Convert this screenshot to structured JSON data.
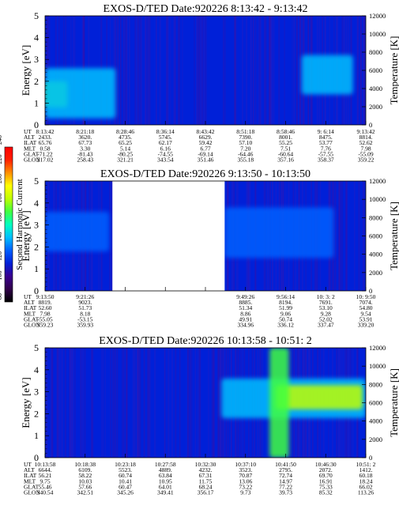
{
  "colorbar": {
    "label": "Second Harmonic Current",
    "ticks": [
      "240",
      "220",
      "200",
      "180",
      "160",
      "140",
      "120",
      "100",
      "80"
    ],
    "stops": [
      "#000000",
      "#30004a",
      "#3a0090",
      "#0020d8",
      "#0060ff",
      "#00c0ff",
      "#00ffc0",
      "#40ff40",
      "#c0ff00",
      "#ffff00",
      "#ff9000",
      "#ff2000",
      "#ff0000"
    ]
  },
  "panels": [
    {
      "title": "EXOS-D/TED   Date:920226  8:13:42 - 9:13:42",
      "ylabel": "Energy [eV]",
      "y2label": "Temperature [K]",
      "yticks": [
        "0",
        "1",
        "2",
        "3",
        "4",
        "5"
      ],
      "y2ticks": [
        "0",
        "2000",
        "4000",
        "6000",
        "8000",
        "10000",
        "12000"
      ],
      "eph_labels": [
        "UT",
        "ALT",
        "ILAT",
        "MLT",
        "GLAT",
        "GLON"
      ],
      "eph": [
        [
          "8:13:42",
          "2433.",
          "65.76",
          "0.58",
          "-71.22",
          "217.02"
        ],
        [
          "8:21:18",
          "3620.",
          "67.73",
          "3.30",
          "-81.43",
          "258.43"
        ],
        [
          "8:28:46",
          "4735.",
          "65.25",
          "5.14",
          "-80.25",
          "321.21"
        ],
        [
          "8:36:14",
          "5745.",
          "62.17",
          "6.16",
          "-74.55",
          "343.54"
        ],
        [
          "8:43:42",
          "6629.",
          "59.42",
          "6.77",
          "-69.14",
          "351.46"
        ],
        [
          "8:51:18",
          "7390.",
          "57.10",
          "7.20",
          "-64.46",
          "355.18"
        ],
        [
          "8:58:46",
          "8001.",
          "55.25",
          "7.51",
          "-60.64",
          "357.16"
        ],
        [
          "9: 6:14",
          "8475.",
          "53.77",
          "7.76",
          "-57.55",
          "358.37"
        ],
        [
          "9:13:42",
          "8814.",
          "52.62",
          "7.98",
          "-55.09",
          "359.22"
        ]
      ]
    },
    {
      "title": "EXOS-D/TED   Date:920226  9:13:50 - 10:13:50",
      "ylabel": "Energy [eV]",
      "y2label": "Temperature [K]",
      "yticks": [
        "0",
        "1",
        "2",
        "3",
        "4",
        "5"
      ],
      "y2ticks": [
        "0",
        "2000",
        "4000",
        "6000",
        "8000",
        "10000",
        "12000"
      ],
      "eph_labels": [
        "UT",
        "ALT",
        "ILAT",
        "MLT",
        "GLAT",
        "GLON"
      ],
      "eph": [
        [
          "9:13:50",
          "8819.",
          "52.60",
          "7.98",
          "-55.05",
          "359.23"
        ],
        [
          "9:21:26",
          "9023.",
          "51.73",
          "8.18",
          "-53.15",
          "359.93"
        ],
        [
          "",
          "",
          "",
          "",
          "",
          ""
        ],
        [
          "",
          "",
          "",
          "",
          "",
          ""
        ],
        [
          "",
          "",
          "",
          "",
          "",
          ""
        ],
        [
          "9:49:26",
          "8885.",
          "51.34",
          "8.86",
          "49.91",
          "334.96"
        ],
        [
          "9:56:14",
          "8194.",
          "51.99",
          "9.06",
          "50.74",
          "336.12"
        ],
        [
          "10: 3: 2",
          "7691.",
          "53.10",
          "9.28",
          "52.02",
          "337.47"
        ],
        [
          "10: 9:50",
          "7074.",
          "54.80",
          "9.54",
          "53.91",
          "339.20"
        ]
      ]
    },
    {
      "title": "EXOS-D/TED   Date:920226  10:13:58 - 10:51: 2",
      "ylabel": "Energy [eV]",
      "y2label": "Temperature [K]",
      "yticks": [
        "0",
        "1",
        "2",
        "3",
        "4",
        "5"
      ],
      "y2ticks": [
        "0",
        "2000",
        "4000",
        "6000",
        "8000",
        "10000",
        "12000"
      ],
      "eph_labels": [
        "UT",
        "ALT",
        "ILAT",
        "MLT",
        "GLAT",
        "GLON"
      ],
      "eph": [
        [
          "10:13:58",
          "6644.",
          "56.21",
          "9.75",
          "55.46",
          "340.54"
        ],
        [
          "10:18:38",
          "6109.",
          "58.22",
          "10.03",
          "57.66",
          "342.51"
        ],
        [
          "10:23:18",
          "5523.",
          "60.74",
          "10.41",
          "60.47",
          "345.26"
        ],
        [
          "10:27:58",
          "4889.",
          "63.84",
          "10.95",
          "64.01",
          "349.41"
        ],
        [
          "10:32:30",
          "4232.",
          "67.31",
          "11.75",
          "68.24",
          "356.17"
        ],
        [
          "10:37:10",
          "3523.",
          "70.87",
          "13.06",
          "73.22",
          "9.73"
        ],
        [
          "10:41:50",
          "2795.",
          "72.74",
          "14.97",
          "77.22",
          "39.73"
        ],
        [
          "10:46:30",
          "2072.",
          "69.70",
          "16.91",
          "75.33",
          "85.32"
        ],
        [
          "10:51: 2",
          "1412.",
          "60.18",
          "18.24",
          "66.02",
          "113.26"
        ]
      ]
    }
  ],
  "chart_data": [
    {
      "type": "heatmap",
      "title": "EXOS-D/TED   Date:920226  8:13:42 - 9:13:42",
      "xlabel": "",
      "ylabel": "Energy [eV]",
      "y2label": "Temperature [K]",
      "ylim": [
        0,
        5
      ],
      "y2lim": [
        0,
        12000
      ],
      "x_ticks": [
        "8:13:42",
        "8:21:18",
        "8:28:46",
        "8:36:14",
        "8:43:42",
        "8:51:18",
        "8:58:46",
        "9: 6:14",
        "9:13:42"
      ],
      "background_level": 125,
      "features": [
        {
          "time_frac": [
            0.0,
            0.07
          ],
          "energy": [
            0.8,
            2.0
          ],
          "level": 175
        },
        {
          "time_frac": [
            0.0,
            0.22
          ],
          "energy": [
            0.3,
            2.6
          ],
          "level": 145
        },
        {
          "time_frac": [
            0.8,
            0.96
          ],
          "energy": [
            1.4,
            3.2
          ],
          "level": 140
        }
      ]
    },
    {
      "type": "heatmap",
      "title": "EXOS-D/TED   Date:920226  9:13:50 - 10:13:50",
      "xlabel": "",
      "ylabel": "Energy [eV]",
      "y2label": "Temperature [K]",
      "ylim": [
        0,
        5
      ],
      "y2lim": [
        0,
        12000
      ],
      "x_ticks": [
        "9:13:50",
        "9:21:26",
        "",
        "",
        "",
        "9:49:26",
        "9:56:14",
        "10: 3: 2",
        "10: 9:50"
      ],
      "background_level": 125,
      "data_gap_time_frac": [
        0.21,
        0.56
      ],
      "features": [
        {
          "time_frac": [
            0.0,
            0.2
          ],
          "energy": [
            1.8,
            3.6
          ],
          "level": 135
        },
        {
          "time_frac": [
            0.56,
            0.9
          ],
          "energy": [
            1.5,
            3.8
          ],
          "level": 138
        }
      ]
    },
    {
      "type": "heatmap",
      "title": "EXOS-D/TED   Date:920226  10:13:58 - 10:51: 2",
      "xlabel": "",
      "ylabel": "Energy [eV]",
      "y2label": "Temperature [K]",
      "ylim": [
        0,
        5
      ],
      "y2lim": [
        0,
        12000
      ],
      "x_ticks": [
        "10:13:58",
        "10:18:38",
        "10:23:18",
        "10:27:58",
        "10:32:30",
        "10:37:10",
        "10:41:50",
        "10:46:30",
        "10:51: 2"
      ],
      "background_level": 125,
      "features": [
        {
          "time_frac": [
            0.55,
            1.0
          ],
          "energy": [
            1.8,
            3.6
          ],
          "level": 150
        },
        {
          "time_frac": [
            0.72,
            0.99
          ],
          "energy": [
            2.2,
            3.3
          ],
          "level": 185
        },
        {
          "time_frac": [
            0.7,
            0.76
          ],
          "energy": [
            0.0,
            5.0
          ],
          "level": 170
        }
      ]
    }
  ]
}
